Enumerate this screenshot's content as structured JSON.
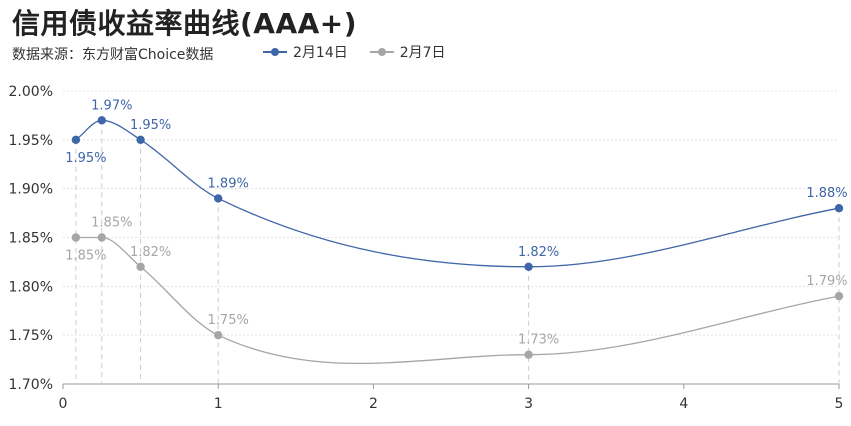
{
  "title": "信用债收益率曲线(AAA+)",
  "source": "数据来源：东方财富Choice数据",
  "colors": {
    "series1": "#3f66a8",
    "series2": "#a6a6a6",
    "grid": "#e4e4e4",
    "axis": "#999999",
    "drop": "#cccccc"
  },
  "chart_data": {
    "type": "line",
    "title": "信用债收益率曲线(AAA+)",
    "xlabel": "",
    "ylabel": "",
    "xlim": [
      0,
      5
    ],
    "ylim": [
      1.7,
      2.0
    ],
    "x_ticks": [
      "0",
      "1",
      "2",
      "3",
      "4",
      "5"
    ],
    "y_ticks": [
      "1.70%",
      "1.75%",
      "1.80%",
      "1.85%",
      "1.90%",
      "1.95%",
      "2.00%"
    ],
    "grid": true,
    "legend": "top",
    "x": [
      0.083,
      0.25,
      0.5,
      1,
      3,
      5
    ],
    "series": [
      {
        "name": "2月14日",
        "values": [
          1.95,
          1.97,
          1.95,
          1.89,
          1.82,
          1.88
        ],
        "labels": [
          "1.95%",
          "1.97%",
          "1.95%",
          "1.89%",
          "1.82%",
          "1.88%"
        ]
      },
      {
        "name": "2月7日",
        "values": [
          1.85,
          1.85,
          1.82,
          1.75,
          1.73,
          1.79
        ],
        "labels": [
          "1.85%",
          "1.85%",
          "1.82%",
          "1.75%",
          "1.73%",
          "1.79%"
        ]
      }
    ]
  }
}
